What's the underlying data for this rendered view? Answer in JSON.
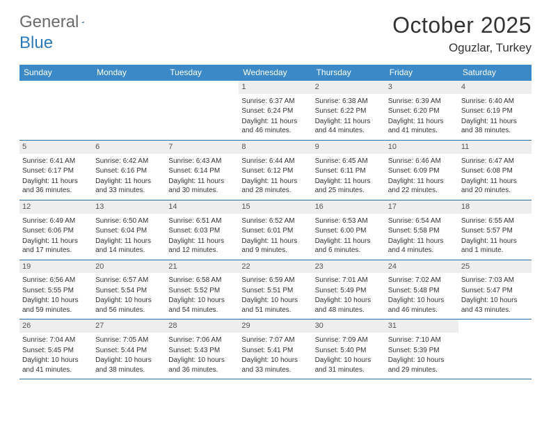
{
  "logo": {
    "text1": "General",
    "text2": "Blue"
  },
  "title": "October 2025",
  "location": "Oguzlar, Turkey",
  "weekdays": [
    "Sunday",
    "Monday",
    "Tuesday",
    "Wednesday",
    "Thursday",
    "Friday",
    "Saturday"
  ],
  "colors": {
    "header_bg": "#3b89c7",
    "header_text": "#ffffff",
    "daynum_bg": "#eeeeee",
    "border": "#2a6ea5",
    "logo_gray": "#6a6a6a",
    "logo_blue": "#2a7ab9"
  },
  "weeks": [
    [
      {
        "n": "",
        "sunrise": "",
        "sunset": "",
        "daylight": ""
      },
      {
        "n": "",
        "sunrise": "",
        "sunset": "",
        "daylight": ""
      },
      {
        "n": "",
        "sunrise": "",
        "sunset": "",
        "daylight": ""
      },
      {
        "n": "1",
        "sunrise": "Sunrise: 6:37 AM",
        "sunset": "Sunset: 6:24 PM",
        "daylight": "Daylight: 11 hours and 46 minutes."
      },
      {
        "n": "2",
        "sunrise": "Sunrise: 6:38 AM",
        "sunset": "Sunset: 6:22 PM",
        "daylight": "Daylight: 11 hours and 44 minutes."
      },
      {
        "n": "3",
        "sunrise": "Sunrise: 6:39 AM",
        "sunset": "Sunset: 6:20 PM",
        "daylight": "Daylight: 11 hours and 41 minutes."
      },
      {
        "n": "4",
        "sunrise": "Sunrise: 6:40 AM",
        "sunset": "Sunset: 6:19 PM",
        "daylight": "Daylight: 11 hours and 38 minutes."
      }
    ],
    [
      {
        "n": "5",
        "sunrise": "Sunrise: 6:41 AM",
        "sunset": "Sunset: 6:17 PM",
        "daylight": "Daylight: 11 hours and 36 minutes."
      },
      {
        "n": "6",
        "sunrise": "Sunrise: 6:42 AM",
        "sunset": "Sunset: 6:16 PM",
        "daylight": "Daylight: 11 hours and 33 minutes."
      },
      {
        "n": "7",
        "sunrise": "Sunrise: 6:43 AM",
        "sunset": "Sunset: 6:14 PM",
        "daylight": "Daylight: 11 hours and 30 minutes."
      },
      {
        "n": "8",
        "sunrise": "Sunrise: 6:44 AM",
        "sunset": "Sunset: 6:12 PM",
        "daylight": "Daylight: 11 hours and 28 minutes."
      },
      {
        "n": "9",
        "sunrise": "Sunrise: 6:45 AM",
        "sunset": "Sunset: 6:11 PM",
        "daylight": "Daylight: 11 hours and 25 minutes."
      },
      {
        "n": "10",
        "sunrise": "Sunrise: 6:46 AM",
        "sunset": "Sunset: 6:09 PM",
        "daylight": "Daylight: 11 hours and 22 minutes."
      },
      {
        "n": "11",
        "sunrise": "Sunrise: 6:47 AM",
        "sunset": "Sunset: 6:08 PM",
        "daylight": "Daylight: 11 hours and 20 minutes."
      }
    ],
    [
      {
        "n": "12",
        "sunrise": "Sunrise: 6:49 AM",
        "sunset": "Sunset: 6:06 PM",
        "daylight": "Daylight: 11 hours and 17 minutes."
      },
      {
        "n": "13",
        "sunrise": "Sunrise: 6:50 AM",
        "sunset": "Sunset: 6:04 PM",
        "daylight": "Daylight: 11 hours and 14 minutes."
      },
      {
        "n": "14",
        "sunrise": "Sunrise: 6:51 AM",
        "sunset": "Sunset: 6:03 PM",
        "daylight": "Daylight: 11 hours and 12 minutes."
      },
      {
        "n": "15",
        "sunrise": "Sunrise: 6:52 AM",
        "sunset": "Sunset: 6:01 PM",
        "daylight": "Daylight: 11 hours and 9 minutes."
      },
      {
        "n": "16",
        "sunrise": "Sunrise: 6:53 AM",
        "sunset": "Sunset: 6:00 PM",
        "daylight": "Daylight: 11 hours and 6 minutes."
      },
      {
        "n": "17",
        "sunrise": "Sunrise: 6:54 AM",
        "sunset": "Sunset: 5:58 PM",
        "daylight": "Daylight: 11 hours and 4 minutes."
      },
      {
        "n": "18",
        "sunrise": "Sunrise: 6:55 AM",
        "sunset": "Sunset: 5:57 PM",
        "daylight": "Daylight: 11 hours and 1 minute."
      }
    ],
    [
      {
        "n": "19",
        "sunrise": "Sunrise: 6:56 AM",
        "sunset": "Sunset: 5:55 PM",
        "daylight": "Daylight: 10 hours and 59 minutes."
      },
      {
        "n": "20",
        "sunrise": "Sunrise: 6:57 AM",
        "sunset": "Sunset: 5:54 PM",
        "daylight": "Daylight: 10 hours and 56 minutes."
      },
      {
        "n": "21",
        "sunrise": "Sunrise: 6:58 AM",
        "sunset": "Sunset: 5:52 PM",
        "daylight": "Daylight: 10 hours and 54 minutes."
      },
      {
        "n": "22",
        "sunrise": "Sunrise: 6:59 AM",
        "sunset": "Sunset: 5:51 PM",
        "daylight": "Daylight: 10 hours and 51 minutes."
      },
      {
        "n": "23",
        "sunrise": "Sunrise: 7:01 AM",
        "sunset": "Sunset: 5:49 PM",
        "daylight": "Daylight: 10 hours and 48 minutes."
      },
      {
        "n": "24",
        "sunrise": "Sunrise: 7:02 AM",
        "sunset": "Sunset: 5:48 PM",
        "daylight": "Daylight: 10 hours and 46 minutes."
      },
      {
        "n": "25",
        "sunrise": "Sunrise: 7:03 AM",
        "sunset": "Sunset: 5:47 PM",
        "daylight": "Daylight: 10 hours and 43 minutes."
      }
    ],
    [
      {
        "n": "26",
        "sunrise": "Sunrise: 7:04 AM",
        "sunset": "Sunset: 5:45 PM",
        "daylight": "Daylight: 10 hours and 41 minutes."
      },
      {
        "n": "27",
        "sunrise": "Sunrise: 7:05 AM",
        "sunset": "Sunset: 5:44 PM",
        "daylight": "Daylight: 10 hours and 38 minutes."
      },
      {
        "n": "28",
        "sunrise": "Sunrise: 7:06 AM",
        "sunset": "Sunset: 5:43 PM",
        "daylight": "Daylight: 10 hours and 36 minutes."
      },
      {
        "n": "29",
        "sunrise": "Sunrise: 7:07 AM",
        "sunset": "Sunset: 5:41 PM",
        "daylight": "Daylight: 10 hours and 33 minutes."
      },
      {
        "n": "30",
        "sunrise": "Sunrise: 7:09 AM",
        "sunset": "Sunset: 5:40 PM",
        "daylight": "Daylight: 10 hours and 31 minutes."
      },
      {
        "n": "31",
        "sunrise": "Sunrise: 7:10 AM",
        "sunset": "Sunset: 5:39 PM",
        "daylight": "Daylight: 10 hours and 29 minutes."
      },
      {
        "n": "",
        "sunrise": "",
        "sunset": "",
        "daylight": ""
      }
    ]
  ]
}
